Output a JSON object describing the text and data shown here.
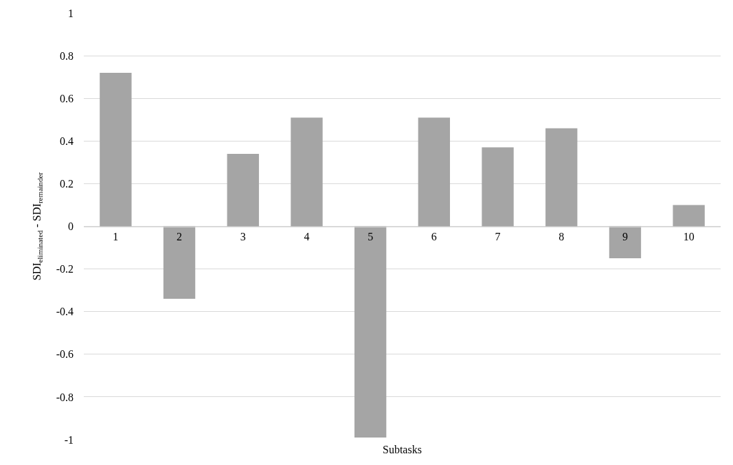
{
  "chart_data": {
    "type": "bar",
    "xlabel": "Subtasks",
    "ylabel": "SDI$_{eliminated}$ - SDI$_{remainder}$",
    "categories": [
      "1",
      "2",
      "3",
      "4",
      "5",
      "6",
      "7",
      "8",
      "9",
      "10"
    ],
    "values": [
      0.72,
      -0.34,
      0.34,
      0.51,
      -0.99,
      0.51,
      0.37,
      0.46,
      -0.15,
      0.1
    ],
    "color": "#a5a5a5",
    "ylim": [
      -1,
      1
    ],
    "yticks": [
      -1,
      -0.8,
      -0.6,
      -0.4,
      -0.2,
      0,
      0.2,
      0.4,
      0.6,
      0.8,
      1
    ],
    "grid": "y",
    "legend": false
  }
}
